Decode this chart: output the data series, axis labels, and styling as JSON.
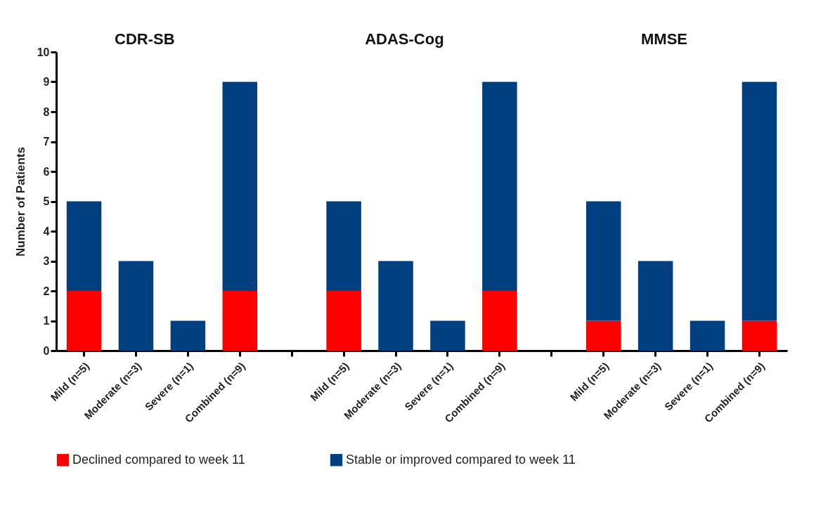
{
  "chart_data": {
    "type": "bar",
    "ylabel": "Number of Patients",
    "stacked": true,
    "legend": "bottom",
    "grid": false,
    "categories": [
      "Mild (n=5)",
      "Moderate (n=3)",
      "Severe (n=1)",
      "Combined (n=9)",
      null,
      "Mild (n=5)",
      "Moderate (n=3)",
      "Severe (n=1)",
      "Combined (n=9)",
      null,
      "Mild (n=5)",
      "Moderate (n=3)",
      "Severe (n=1)",
      "Combined (n=9)"
    ],
    "series": [
      {
        "name": "Declined compared to week 11",
        "color": "#ff0000",
        "values": [
          2,
          0,
          0,
          2,
          null,
          2,
          0,
          0,
          2,
          null,
          1,
          0,
          0,
          1
        ]
      },
      {
        "name": "Stable or improved compared to week 11",
        "color": "#004080",
        "values": [
          3,
          3,
          1,
          7,
          null,
          3,
          3,
          1,
          7,
          null,
          4,
          3,
          1,
          8
        ]
      }
    ],
    "annotations": [
      "CDR-SB",
      "ADAS-Cog",
      "MMSE"
    ],
    "ylim": [
      0,
      10
    ],
    "yticks": [
      0,
      1,
      2,
      3,
      4,
      5,
      6,
      7,
      8,
      9,
      10
    ]
  }
}
